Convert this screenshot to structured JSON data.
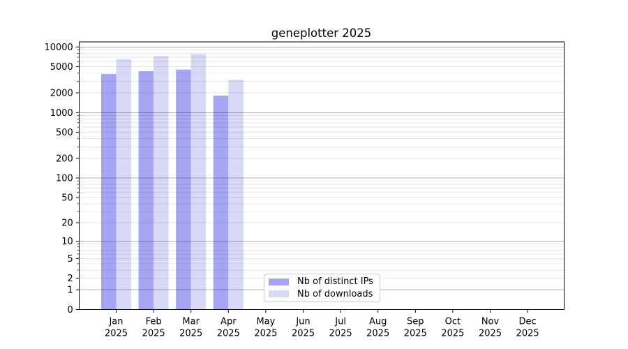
{
  "title": "geneplotter 2025",
  "chart_data": {
    "type": "bar",
    "title": "geneplotter 2025",
    "categories": [
      "Jan",
      "Feb",
      "Mar",
      "Apr",
      "May",
      "Jun",
      "Jul",
      "Aug",
      "Sep",
      "Oct",
      "Nov",
      "Dec"
    ],
    "category_year": "2025",
    "series": [
      {
        "name": "Nb of distinct IPs",
        "color": "#a5a5f4",
        "values": [
          3870,
          4270,
          4520,
          1815,
          null,
          null,
          null,
          null,
          null,
          null,
          null,
          null
        ]
      },
      {
        "name": "Nb of downloads",
        "color": "#d8d8f7",
        "values": [
          6550,
          7250,
          7800,
          3160,
          null,
          null,
          null,
          null,
          null,
          null,
          null,
          null
        ]
      }
    ],
    "y_scale": "log1p",
    "y_ticks": [
      0,
      1,
      2,
      5,
      10,
      20,
      50,
      100,
      200,
      500,
      1000,
      2000,
      5000,
      10000
    ],
    "ylim": [
      0,
      12000
    ],
    "xlabel": "",
    "ylabel": "",
    "grid": "both",
    "legend_position": "lower center"
  },
  "colors": {
    "grid_major": "rgba(0,0,0,0.30)",
    "grid_minor": "rgba(0,0,0,0.10)",
    "spine": "#000000"
  }
}
